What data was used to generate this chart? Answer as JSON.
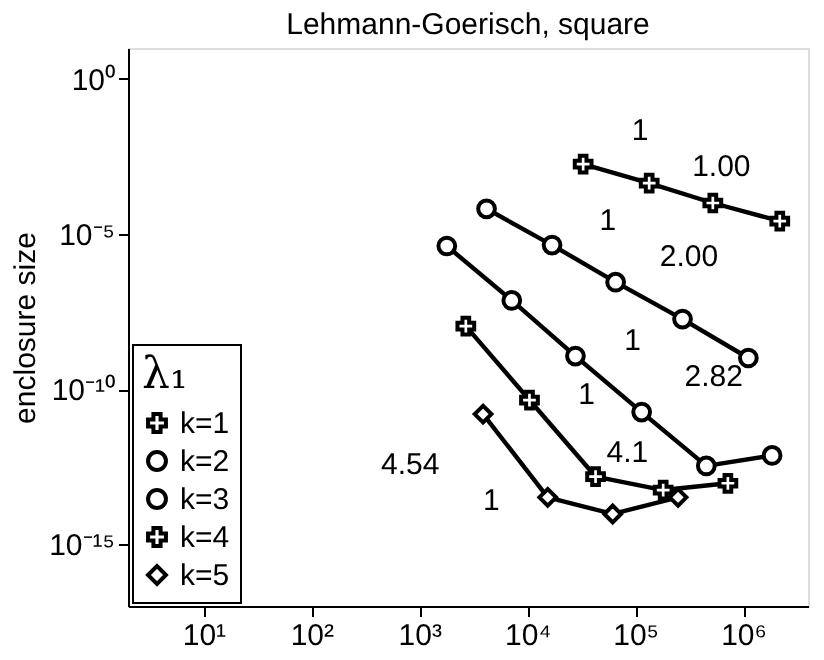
{
  "chart_data": {
    "type": "line",
    "title": "Lehmann-Goerisch, square",
    "ylabel": "enclosure size",
    "legend_title": "λ₁",
    "legend": "bottom left",
    "log": "xy",
    "grid": false,
    "line_style": "solid",
    "xlim": [
      2,
      4000000
    ],
    "xticks": [
      {
        "value": 10,
        "label": "10¹"
      },
      {
        "value": 100,
        "label": "10²"
      },
      {
        "value": 1000,
        "label": "10³"
      },
      {
        "value": 10000,
        "label": "10⁴"
      },
      {
        "value": 100000,
        "label": "10⁵"
      },
      {
        "value": 1000000,
        "label": "10⁶"
      }
    ],
    "ylim": [
      1e-17,
      10
    ],
    "yticks": [
      {
        "value": 1,
        "label": "10⁰"
      },
      {
        "value": 1e-05,
        "label": "10⁻⁵"
      },
      {
        "value": 1e-10,
        "label": "10⁻¹⁰"
      },
      {
        "value": 1e-15,
        "label": "10⁻¹⁵"
      }
    ],
    "series": [
      {
        "name": "k=1",
        "color": "#000000",
        "marker": "cross",
        "x": [
          33000,
          135000,
          525000,
          2190000
        ],
        "values": [
          0.0018,
          0.00044,
          0.0001,
          2.6e-05
        ]
      },
      {
        "name": "k=2",
        "color": "#000000",
        "marker": "circle",
        "x": [
          4200,
          17000,
          66000,
          275000,
          1120000
        ],
        "values": [
          6.5e-05,
          4.4e-06,
          2.8e-07,
          1.8e-08,
          1e-09
        ]
      },
      {
        "name": "k=3",
        "color": "#000000",
        "marker": "circle",
        "x": [
          1800,
          7200,
          28000,
          115000,
          457000,
          1860000
        ],
        "values": [
          4.1e-06,
          7.2e-08,
          1.15e-09,
          1.8e-11,
          3.3e-13,
          7.2e-13
        ]
      },
      {
        "name": "k=4",
        "color": "#000000",
        "marker": "cross",
        "x": [
          2700,
          10500,
          43000,
          182000,
          724000
        ],
        "values": [
          1.07e-08,
          4.4e-11,
          1.5e-13,
          5.5e-14,
          9.1e-14
        ]
      },
      {
        "name": "k=5",
        "color": "#000000",
        "marker": "diamond",
        "x": [
          3900,
          15500,
          62000,
          250000
        ],
        "values": [
          1.55e-11,
          3.2e-14,
          9.3e-15,
          3.2e-14
        ]
      }
    ],
    "annotations": [
      "1",
      "1.00",
      "1",
      "2.00",
      "1",
      "2.82",
      "1",
      "4.1",
      "1",
      "4.54"
    ]
  }
}
